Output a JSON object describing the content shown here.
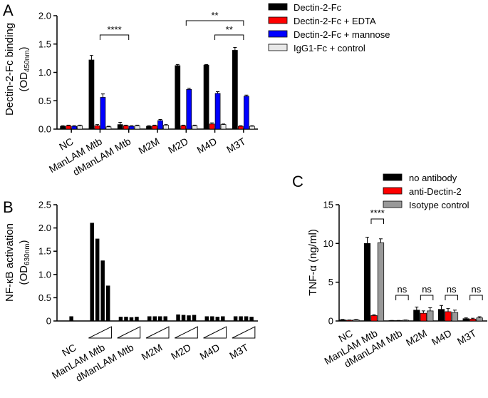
{
  "chart_data": [
    {
      "type": "bar",
      "panel": "A",
      "ylabel": "Dectin-2-Fc binding",
      "ylabel_unit": "(OD450nm)",
      "ylim": [
        0,
        2.0
      ],
      "yticks": [
        "0.0",
        "0.5",
        "1.0",
        "1.5",
        "2.0"
      ],
      "categories": [
        "NC",
        "ManLAM Mtb",
        "dManLAM Mtb",
        "M2M",
        "M2D",
        "M4D",
        "M3T"
      ],
      "series": [
        {
          "name": "Dectin-2-Fc",
          "color": "#000000",
          "values": [
            0.05,
            1.22,
            0.08,
            0.05,
            1.12,
            1.13,
            1.39
          ]
        },
        {
          "name": "Dectin-2-Fc + EDTA",
          "color": "#ff0000",
          "values": [
            0.06,
            0.06,
            0.06,
            0.06,
            0.06,
            0.09,
            0.05
          ]
        },
        {
          "name": "Dectin-2-Fc + mannose",
          "color": "#0000ff",
          "values": [
            0.05,
            0.56,
            0.05,
            0.15,
            0.7,
            0.63,
            0.58
          ]
        },
        {
          "name": "IgG1-Fc + control",
          "color": "#e8e8e8",
          "values": [
            0.06,
            0.04,
            0.06,
            0.07,
            0.06,
            0.08,
            0.05
          ]
        }
      ],
      "errors": [
        [
          0.01,
          0.08,
          0.04,
          0.01,
          0.02,
          0.01,
          0.05
        ],
        [
          0.01,
          0.02,
          0.01,
          0.01,
          0.01,
          0.02,
          0.01
        ],
        [
          0.01,
          0.06,
          0.01,
          0.02,
          0.02,
          0.03,
          0.02
        ],
        [
          0.01,
          0.01,
          0.01,
          0.01,
          0.01,
          0.01,
          0.01
        ]
      ],
      "significance": [
        {
          "label": "****",
          "from": "ManLAM Mtb",
          "to": "dManLAM Mtb"
        },
        {
          "label": "**",
          "from": "M2D",
          "to": "M3T"
        },
        {
          "label": "**",
          "from": "M4D",
          "to": "M3T"
        }
      ]
    },
    {
      "type": "bar",
      "panel": "B",
      "ylabel": "NF-κB activation",
      "ylabel_unit": "(OD630nm)",
      "ylim": [
        0,
        2.5
      ],
      "yticks": [
        "0",
        "0.5",
        "1.0",
        "1.5",
        "2.0",
        "2.5"
      ],
      "categories": [
        "NC",
        "ManLAM Mtb",
        "dManLAM Mtb",
        "M2M",
        "M2D",
        "M4D",
        "M3T"
      ],
      "groups": [
        {
          "name": "NC",
          "values": [
            0.1
          ]
        },
        {
          "name": "ManLAM Mtb",
          "values": [
            2.11,
            1.77,
            1.3,
            0.76
          ]
        },
        {
          "name": "dManLAM Mtb",
          "values": [
            0.09,
            0.09,
            0.08,
            0.09
          ]
        },
        {
          "name": "M2M",
          "values": [
            0.1,
            0.1,
            0.1,
            0.1
          ]
        },
        {
          "name": "M2D",
          "values": [
            0.14,
            0.13,
            0.12,
            0.13
          ]
        },
        {
          "name": "M4D",
          "values": [
            0.1,
            0.1,
            0.09,
            0.1
          ]
        },
        {
          "name": "M3T",
          "values": [
            0.1,
            0.1,
            0.1,
            0.09
          ]
        }
      ]
    },
    {
      "type": "bar",
      "panel": "C",
      "ylabel": "TNF-α (ng/ml)",
      "ylim": [
        0,
        15
      ],
      "yticks": [
        "0",
        "5",
        "10",
        "15"
      ],
      "categories": [
        "NC",
        "ManLAM Mtb",
        "dManLAM Mtb",
        "M2M",
        "M4D",
        "M3T"
      ],
      "series": [
        {
          "name": "no antibody",
          "color": "#000000",
          "values": [
            0.15,
            10.0,
            0.05,
            1.4,
            1.5,
            0.3
          ]
        },
        {
          "name": "anti-Dectin-2",
          "color": "#ff0000",
          "values": [
            0.1,
            0.7,
            0.05,
            1.0,
            1.2,
            0.25
          ]
        },
        {
          "name": "Isotype control",
          "color": "#999999",
          "values": [
            0.15,
            10.1,
            0.1,
            1.3,
            1.1,
            0.4
          ]
        }
      ],
      "errors": [
        [
          0.05,
          0.8,
          0.02,
          0.4,
          0.5,
          0.1
        ],
        [
          0.03,
          0.1,
          0.02,
          0.3,
          0.4,
          0.1
        ],
        [
          0.05,
          0.5,
          0.03,
          0.4,
          0.3,
          0.15
        ]
      ],
      "significance": [
        {
          "label": "****",
          "category": "ManLAM Mtb"
        },
        {
          "label": "ns",
          "category": "dManLAM Mtb"
        },
        {
          "label": "ns",
          "category": "M2M"
        },
        {
          "label": "ns",
          "category": "M4D"
        },
        {
          "label": "ns",
          "category": "M3T"
        }
      ]
    }
  ],
  "panels": {
    "a": {
      "letter": "A",
      "ylabel": "Dectin-2-Fc binding",
      "ylabel_unit_open": "(OD",
      "ylabel_unit_sub": "450nm",
      "ylabel_unit_close": ")"
    },
    "b": {
      "letter": "B",
      "ylabel": "NF-κB activation",
      "ylabel_unit_open": "(OD",
      "ylabel_unit_sub": "630nm",
      "ylabel_unit_close": ")"
    },
    "c": {
      "letter": "C",
      "ylabel": "TNF-α (ng/ml)"
    }
  }
}
